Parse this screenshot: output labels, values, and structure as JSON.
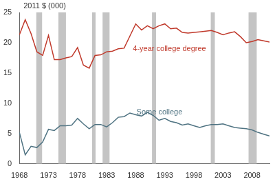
{
  "chart_data": {
    "type": "line",
    "y_label": "2011 $ (000)",
    "x": [
      1968,
      1969,
      1970,
      1971,
      1972,
      1973,
      1974,
      1975,
      1976,
      1977,
      1978,
      1979,
      1980,
      1981,
      1982,
      1983,
      1984,
      1985,
      1986,
      1987,
      1988,
      1989,
      1990,
      1991,
      1992,
      1993,
      1994,
      1995,
      1996,
      1997,
      1998,
      1999,
      2000,
      2001,
      2002,
      2003,
      2004,
      2005,
      2006,
      2007,
      2008,
      2009,
      2010,
      2011
    ],
    "series": [
      {
        "name": "4-year college degree",
        "color": "#c0392b",
        "values": [
          21.3,
          23.8,
          21.5,
          18.5,
          17.9,
          21.2,
          17.2,
          17.2,
          17.5,
          17.7,
          19.2,
          16.3,
          15.8,
          17.9,
          18.0,
          18.5,
          18.6,
          19.0,
          19.1,
          21.1,
          23.1,
          22.1,
          22.8,
          22.3,
          22.8,
          23.1,
          22.3,
          22.4,
          21.7,
          21.6,
          21.7,
          21.8,
          21.9,
          22.0,
          21.7,
          21.3,
          21.6,
          21.8,
          21.0,
          20.0,
          20.2,
          20.5,
          20.3,
          20.1
        ]
      },
      {
        "name": "Some college",
        "color": "#4f7382",
        "values": [
          5.2,
          1.5,
          2.9,
          2.7,
          3.6,
          5.7,
          5.5,
          6.3,
          6.3,
          6.4,
          7.5,
          6.6,
          5.8,
          6.5,
          6.5,
          6.1,
          6.8,
          7.7,
          7.8,
          8.4,
          8.1,
          7.9,
          8.5,
          8.0,
          7.2,
          7.5,
          7.0,
          6.8,
          6.4,
          6.6,
          6.3,
          6.0,
          6.3,
          6.5,
          6.5,
          6.6,
          6.3,
          6.0,
          5.9,
          5.8,
          5.6,
          5.2,
          4.9,
          4.6
        ]
      }
    ],
    "shaded_x_ranges": [
      [
        1970.9,
        1971.9
      ],
      [
        1974.7,
        1976.0
      ],
      [
        1980.5,
        1981.1
      ],
      [
        1982.3,
        1983.5
      ],
      [
        1990.8,
        1991.5
      ],
      [
        2000.9,
        2001.6
      ],
      [
        2007.4,
        2008.8
      ]
    ],
    "xlim": [
      1968,
      2011
    ],
    "xticks": [
      1968,
      1973,
      1978,
      1983,
      1988,
      1993,
      1998,
      2003,
      2008
    ],
    "ylim": [
      0,
      25
    ],
    "yticks": [
      0,
      5,
      10,
      15,
      20,
      25
    ],
    "grid": false
  }
}
